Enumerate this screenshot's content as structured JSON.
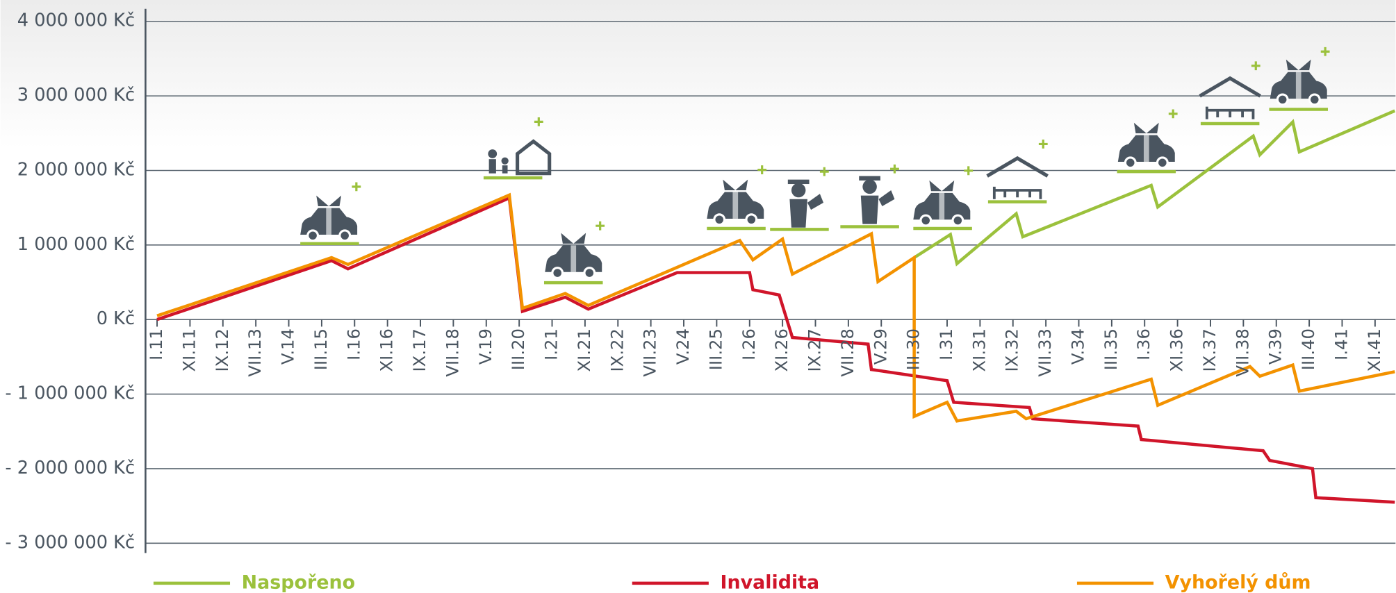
{
  "chart_data": {
    "type": "line",
    "categories": [
      "I.11",
      "XI.11",
      "IX.12",
      "VII.13",
      "V.14",
      "III.15",
      "I.16",
      "XI.16",
      "IX.17",
      "VII.18",
      "V.19",
      "III.20",
      "I.21",
      "XI.21",
      "IX.22",
      "VII.23",
      "V.24",
      "III.25",
      "I.26",
      "XI.26",
      "IX.27",
      "VII.28",
      "V.29",
      "III.30",
      "I.31",
      "XI.31",
      "IX.32",
      "VII.33",
      "V.34",
      "III.35",
      "I.36",
      "XI.36",
      "IX.37",
      "VII.38",
      "V.39",
      "III.40",
      "I.41",
      "XI.41"
    ],
    "ylim": [
      -3000000,
      4000000
    ],
    "yticks": [
      {
        "value": -3000000,
        "label": "- 3 000 000 Kč"
      },
      {
        "value": -2000000,
        "label": "- 2 000 000 Kč"
      },
      {
        "value": -1000000,
        "label": "- 1 000 000 Kč"
      },
      {
        "value": 0,
        "label": "0 Kč"
      },
      {
        "value": 1000000,
        "label": "1 000 000 Kč"
      },
      {
        "value": 2000000,
        "label": "2 000 000 Kč"
      },
      {
        "value": 3000000,
        "label": "3 000 000 Kč"
      },
      {
        "value": 4000000,
        "label": "4 000 000 Kč"
      }
    ],
    "grid": true,
    "legend": "bottom",
    "series": [
      {
        "name": "Naspořeno",
        "color": "#9bc13c",
        "x": [
          "III.30",
          "II.31",
          "IV.31",
          "X.32",
          "XII.32",
          "III.36",
          "V.36",
          "X.38",
          "XII.38",
          "X.39",
          "XII.39",
          "V.42"
        ],
        "values": [
          830000,
          1140000,
          750000,
          1420000,
          1110000,
          1800000,
          1510000,
          2460000,
          2210000,
          2650000,
          2250000,
          2800000
        ]
      },
      {
        "name": "Invalidita",
        "color": "#d0152a",
        "x": [
          "I.11",
          "VI.15",
          "XI.15",
          "XII.19",
          "IV.20",
          "V.21",
          "XII.21",
          "III.24",
          "I.26",
          "II.26",
          "X.26",
          "II.27",
          "I.29",
          "II.29",
          "I.31",
          "III.31",
          "II.33",
          "III.33",
          "XI.35",
          "XII.35",
          "I.39",
          "III.39",
          "IV.40",
          "V.40",
          "V.42"
        ],
        "values": [
          0,
          790000,
          680000,
          1630000,
          110000,
          300000,
          140000,
          630000,
          630000,
          400000,
          330000,
          -240000,
          -330000,
          -670000,
          -820000,
          -1110000,
          -1180000,
          -1330000,
          -1430000,
          -1610000,
          -1760000,
          -1890000,
          -2000000,
          -2390000,
          -2450000
        ]
      },
      {
        "name": "Vyhořelý dům",
        "color": "#f39200",
        "x": [
          "I.11",
          "VI.15",
          "XI.15",
          "XII.19",
          "IV.20",
          "V.21",
          "XII.21",
          "X.25",
          "II.26",
          "XI.26",
          "II.27",
          "II.29",
          "IV.29",
          "III.30",
          "III.30",
          "I.31",
          "IV.31",
          "X.32",
          "I.33",
          "III.36",
          "V.36",
          "IX.38",
          "XII.38",
          "X.39",
          "XII.39",
          "V.42"
        ],
        "values": [
          50000,
          830000,
          740000,
          1670000,
          150000,
          350000,
          190000,
          1060000,
          800000,
          1080000,
          610000,
          1150000,
          510000,
          830000,
          -1300000,
          -1110000,
          -1360000,
          -1230000,
          -1330000,
          -800000,
          -1150000,
          -630000,
          -760000,
          -610000,
          -960000,
          -700000
        ]
      }
    ]
  }
}
